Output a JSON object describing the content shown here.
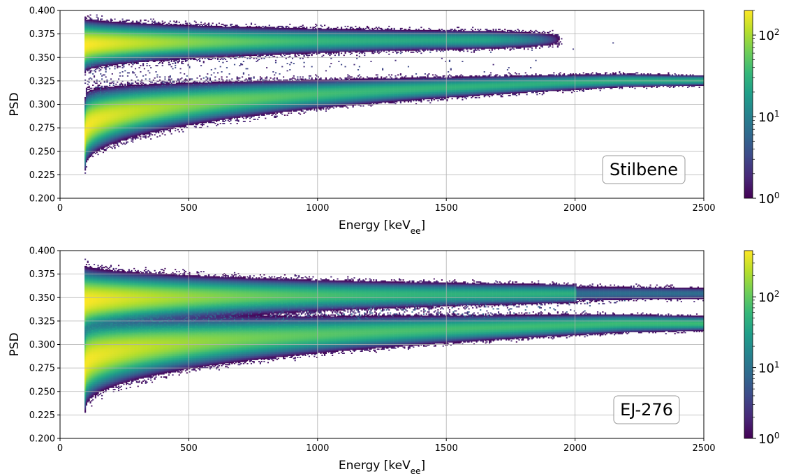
{
  "chart_data": [
    {
      "type": "heatmap",
      "label": "Stilbene",
      "xlabel": "Energy [keV",
      "xlabel_sub": "ee",
      "xlabel_end": "]",
      "ylabel": "PSD",
      "xlim": [
        0,
        2500
      ],
      "ylim": [
        0.2,
        0.4
      ],
      "x_ticks": [
        "0",
        "500",
        "1000",
        "1500",
        "2000",
        "2500"
      ],
      "y_ticks": [
        "0.200",
        "0.225",
        "0.250",
        "0.275",
        "0.300",
        "0.325",
        "0.350",
        "0.375",
        "0.400"
      ],
      "grid": true,
      "colorbar": {
        "scale": "log",
        "min": 1,
        "max": 200,
        "ticks": [
          {
            "base": "10",
            "exp": "0",
            "value": 1
          },
          {
            "base": "10",
            "exp": "1",
            "value": 10
          },
          {
            "base": "10",
            "exp": "2",
            "value": 100
          }
        ]
      },
      "x_start": 95,
      "upper_band": {
        "psd_start": 0.362,
        "psd_end": 0.369,
        "width_start": 0.013,
        "width_end": 0.004,
        "ends_at": 1950
      },
      "lower_band": {
        "psd_start": 0.268,
        "psd_end": 0.325,
        "width_start": 0.018,
        "width_end": 0.003
      }
    },
    {
      "type": "heatmap",
      "label": "EJ-276",
      "xlabel": "Energy [keV",
      "xlabel_sub": "ee",
      "xlabel_end": "]",
      "ylabel": "PSD",
      "xlim": [
        0,
        2500
      ],
      "ylim": [
        0.2,
        0.4
      ],
      "x_ticks": [
        "0",
        "500",
        "1000",
        "1500",
        "2000",
        "2500"
      ],
      "y_ticks": [
        "0.200",
        "0.225",
        "0.250",
        "0.275",
        "0.300",
        "0.325",
        "0.350",
        "0.375",
        "0.400"
      ],
      "grid": true,
      "colorbar": {
        "scale": "log",
        "min": 1,
        "max": 450,
        "ticks": [
          {
            "base": "10",
            "exp": "0",
            "value": 1
          },
          {
            "base": "10",
            "exp": "1",
            "value": 10
          },
          {
            "base": "10",
            "exp": "2",
            "value": 100
          }
        ]
      },
      "x_start": 95,
      "upper_band": {
        "psd_start": 0.345,
        "psd_end": 0.354,
        "width_start": 0.016,
        "width_end": 0.004,
        "ends_at": 2500
      },
      "lower_band": {
        "psd_start": 0.275,
        "psd_end": 0.322,
        "width_start": 0.02,
        "width_end": 0.004
      }
    }
  ],
  "colors": {
    "viridis": [
      "#440154",
      "#482878",
      "#3e4989",
      "#31688e",
      "#26828e",
      "#1f9e89",
      "#35b779",
      "#6ece58",
      "#b5de2b",
      "#fde725"
    ]
  }
}
